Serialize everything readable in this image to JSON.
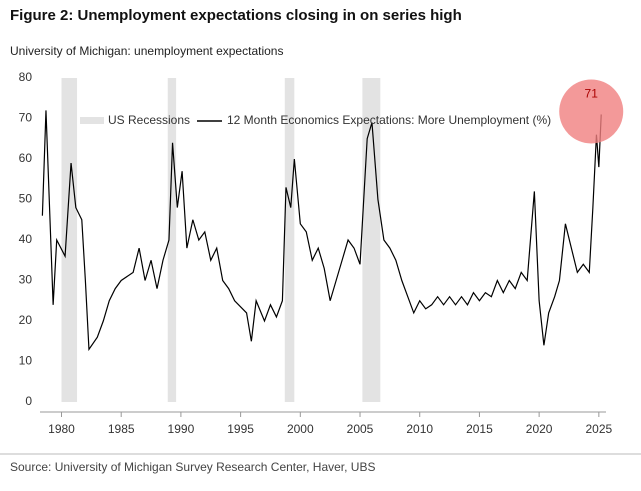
{
  "chart_data": {
    "type": "line",
    "title": "Figure 2: Unemployment expectations closing in on series high",
    "subtitle": "University of Michigan: unemployment expectations",
    "source": "Source: University of Michigan Survey Research Center, Haver, UBS",
    "x": [
      1978.4,
      1978.7,
      1979.3,
      1979.6,
      1980.3,
      1980.8,
      1981.2,
      1981.7,
      1982.0,
      1982.3,
      1983.0,
      1983.5,
      1984.0,
      1984.5,
      1985.0,
      1986.0,
      1986.5,
      1987.0,
      1987.5,
      1988.0,
      1988.5,
      1989.0,
      1989.3,
      1989.7,
      1990.1,
      1990.5,
      1991.0,
      1991.5,
      1992.0,
      1992.5,
      1993.0,
      1993.5,
      1994.0,
      1994.5,
      1995.5,
      1995.9,
      1996.3,
      1997.0,
      1997.5,
      1998.0,
      1998.5,
      1998.8,
      1999.2,
      1999.5,
      2000.0,
      2000.5,
      2001.0,
      2001.5,
      2002.0,
      2002.5,
      2003.0,
      2003.5,
      2004.0,
      2004.5,
      2005.0,
      2005.6,
      2006.0,
      2006.5,
      2007.0,
      2007.5,
      2008.0,
      2008.5,
      2009.0,
      2009.5,
      2010.0,
      2010.5,
      2011.0,
      2011.5,
      2012.0,
      2012.5,
      2013.0,
      2013.5,
      2014.0,
      2014.5,
      2015.0,
      2015.5,
      2016.0,
      2016.5,
      2017.0,
      2017.5,
      2018.0,
      2018.5,
      2019.0,
      2019.6,
      2020.0,
      2020.4,
      2020.8,
      2021.3,
      2021.7,
      2022.2,
      2022.7,
      2023.2,
      2023.7,
      2024.2,
      2024.5,
      2024.8,
      2025.0,
      2025.2
    ],
    "series": [
      {
        "name": "12 Month Economics Expectations: More Unemployment (%)",
        "color": "#000000",
        "values": [
          46,
          72,
          24,
          40,
          36,
          59,
          48,
          45,
          30,
          13,
          16,
          20,
          25,
          28,
          30,
          32,
          38,
          30,
          35,
          28,
          35,
          40,
          64,
          48,
          57,
          38,
          45,
          40,
          42,
          35,
          38,
          30,
          28,
          25,
          22,
          15,
          25,
          20,
          24,
          21,
          25,
          53,
          48,
          60,
          44,
          42,
          35,
          38,
          33,
          25,
          30,
          35,
          40,
          38,
          34,
          65,
          69,
          50,
          40,
          38,
          35,
          30,
          26,
          22,
          25,
          23,
          24,
          26,
          24,
          26,
          24,
          26,
          24,
          27,
          25,
          27,
          26,
          30,
          27,
          30,
          28,
          32,
          30,
          52,
          25,
          14,
          22,
          26,
          30,
          44,
          38,
          32,
          34,
          32,
          48,
          66,
          58,
          71
        ]
      }
    ],
    "recessions": {
      "name": "US Recessions",
      "color": "#e3e3e3",
      "ranges": [
        [
          1980.0,
          1981.3
        ],
        [
          1988.9,
          1989.6
        ],
        [
          1998.7,
          1999.5
        ],
        [
          2005.2,
          2006.7
        ]
      ]
    },
    "annotation": {
      "label": "71",
      "x": 2025.2,
      "y": 71,
      "color": "#f08080"
    },
    "xlim": [
      1978.2,
      2025.6
    ],
    "xticks": [
      1980,
      1985,
      1990,
      1995,
      2000,
      2005,
      2010,
      2015,
      2020,
      2025
    ],
    "ylim": [
      0,
      80
    ],
    "yticks": [
      0,
      10,
      20,
      30,
      40,
      50,
      60,
      70,
      80
    ]
  }
}
